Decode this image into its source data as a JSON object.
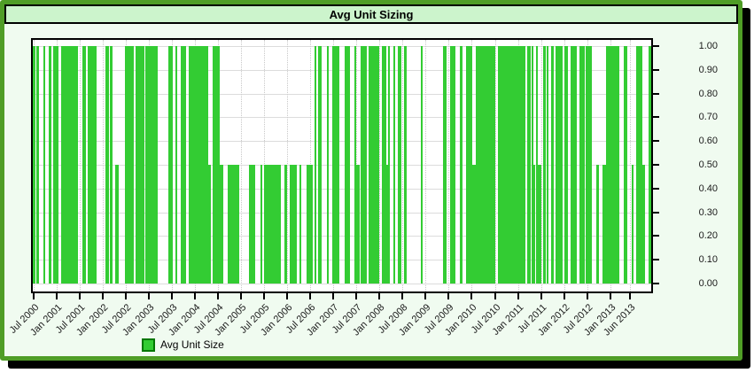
{
  "window": {
    "title": "Avg Unit Sizing"
  },
  "colors": {
    "panel_border": "#4f9d26",
    "title_background": "#ccf4cc",
    "content_background": "#f0fbf0",
    "bar_green": "#33cc33",
    "legend_swatch_border": "#007700",
    "plot_background": "#ffffff",
    "axis_black": "#000000",
    "h_gridline": "#dcdcdc",
    "v_gridline": "#c8c8c8"
  },
  "chart_data": {
    "type": "bar",
    "title": "Avg Unit Sizing",
    "xlabel": "",
    "ylabel": "",
    "ylim": [
      0.0,
      1.0
    ],
    "y_axis_side": "right",
    "grid": true,
    "bar_color": "#33cc33",
    "legend": {
      "label": "Avg Unit Size",
      "swatch_color": "#33cc33",
      "position": "bottom-left"
    },
    "y_tick_labels": [
      "1.00",
      "0.90",
      "0.80",
      "0.70",
      "0.60",
      "0.50",
      "0.40",
      "0.30",
      "0.20",
      "0.10",
      "0.00"
    ],
    "y_tick_values": [
      1.0,
      0.9,
      0.8,
      0.7,
      0.6,
      0.5,
      0.4,
      0.3,
      0.2,
      0.1,
      0.0
    ],
    "x_tick_labels": [
      "Jul 2000",
      "Jan 2001",
      "Jul 2001",
      "Jan 2002",
      "Jul 2002",
      "Jan 2003",
      "Jul 2003",
      "Jan 2004",
      "Jul 2004",
      "Jan 2005",
      "Jul 2005",
      "Jan 2006",
      "Jul 2006",
      "Jan 2007",
      "Jul 2007",
      "Jan 2008",
      "Jul 2008",
      "Jan 2009",
      "Jul 2009",
      "Jan 2010",
      "Jul 2010",
      "Jan 2011",
      "Jul 2011",
      "Jan 2012",
      "Jul 2012",
      "Jan 2013",
      "Jun 2013"
    ],
    "value_levels": [
      1.0,
      0.5
    ],
    "series_description": "Daily average unit size; dense vertical bars at 1.0 or 0.5, gaps = no position",
    "segments": [
      {
        "from": 0.0,
        "to": 0.05,
        "density": 0.55,
        "half_prob": 0.08
      },
      {
        "from": 0.05,
        "to": 0.1,
        "density": 0.85,
        "half_prob": 0.08
      },
      {
        "from": 0.1,
        "to": 0.14,
        "density": 0.45,
        "half_prob": 0.2
      },
      {
        "from": 0.14,
        "to": 0.23,
        "density": 0.72,
        "half_prob": 0.06
      },
      {
        "from": 0.23,
        "to": 0.27,
        "density": 0.9,
        "half_prob": 0.04
      },
      {
        "from": 0.27,
        "to": 0.315,
        "density": 0.6,
        "half_prob": 0.18
      },
      {
        "from": 0.315,
        "to": 0.45,
        "density": 0.82,
        "half_prob": 1.0
      },
      {
        "from": 0.45,
        "to": 0.52,
        "density": 0.6,
        "half_prob": 0.1
      },
      {
        "from": 0.52,
        "to": 0.565,
        "density": 0.65,
        "half_prob": 0.35
      },
      {
        "from": 0.565,
        "to": 0.6,
        "density": 0.72,
        "half_prob": 0.45
      },
      {
        "from": 0.6,
        "to": 0.645,
        "density": 0.55,
        "half_prob": 0.1
      },
      {
        "from": 0.645,
        "to": 0.665,
        "density": 0.1,
        "half_prob": 0.5
      },
      {
        "from": 0.665,
        "to": 0.7,
        "density": 0.6,
        "half_prob": 0.15
      },
      {
        "from": 0.7,
        "to": 0.755,
        "density": 0.93,
        "half_prob": 0.05
      },
      {
        "from": 0.755,
        "to": 0.8,
        "density": 0.75,
        "half_prob": 0.12
      },
      {
        "from": 0.8,
        "to": 0.845,
        "density": 0.62,
        "half_prob": 0.35
      },
      {
        "from": 0.845,
        "to": 0.9,
        "density": 0.76,
        "half_prob": 0.1
      },
      {
        "from": 0.9,
        "to": 0.945,
        "density": 0.62,
        "half_prob": 0.22
      },
      {
        "from": 0.945,
        "to": 1.0,
        "density": 0.8,
        "half_prob": 0.12
      }
    ],
    "seed": 42
  }
}
